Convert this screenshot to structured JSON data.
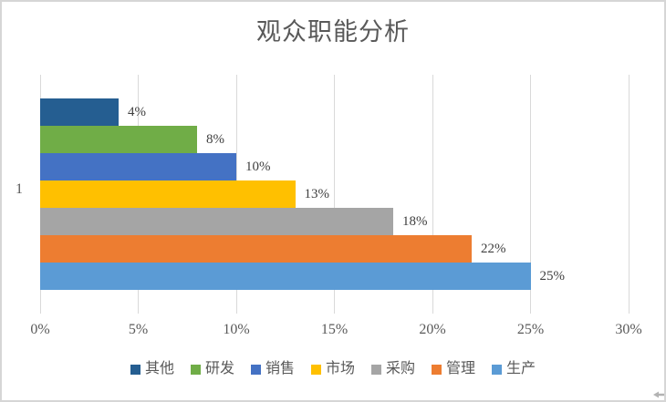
{
  "chart_data": {
    "type": "bar",
    "orientation": "horizontal",
    "title": "观众职能分析",
    "category_axis_labels": [
      "1"
    ],
    "series": [
      {
        "name": "其他",
        "value": 4,
        "label": "4%",
        "color": "#255E91"
      },
      {
        "name": "研发",
        "value": 8,
        "label": "8%",
        "color": "#70AD47"
      },
      {
        "name": "销售",
        "value": 10,
        "label": "10%",
        "color": "#4472C4"
      },
      {
        "name": "市场",
        "value": 13,
        "label": "13%",
        "color": "#FFC000"
      },
      {
        "name": "采购",
        "value": 18,
        "label": "18%",
        "color": "#A5A5A5"
      },
      {
        "name": "管理",
        "value": 22,
        "label": "22%",
        "color": "#ED7D31"
      },
      {
        "name": "生产",
        "value": 25,
        "label": "25%",
        "color": "#5B9BD5"
      }
    ],
    "bar_order_top_to_bottom": [
      "其他",
      "研发",
      "销售",
      "市场",
      "采购",
      "管理",
      "生产"
    ],
    "x_axis": {
      "ticks": [
        "0%",
        "5%",
        "10%",
        "15%",
        "20%",
        "25%",
        "30%"
      ],
      "min": 0,
      "max": 30,
      "gridlines": true
    },
    "legend": {
      "position": "bottom",
      "entries": [
        "其他",
        "研发",
        "销售",
        "市场",
        "采购",
        "管理",
        "生产"
      ]
    },
    "style": {
      "title_text_color": "#595959",
      "axis_text_color": "#595959",
      "data_label_color": "#404040",
      "gridline_color": "#D9D9D9",
      "chart_border_color": "#D6D6D6"
    },
    "artifacts": {
      "cursor_icon": "left-arrow-cursor"
    }
  }
}
